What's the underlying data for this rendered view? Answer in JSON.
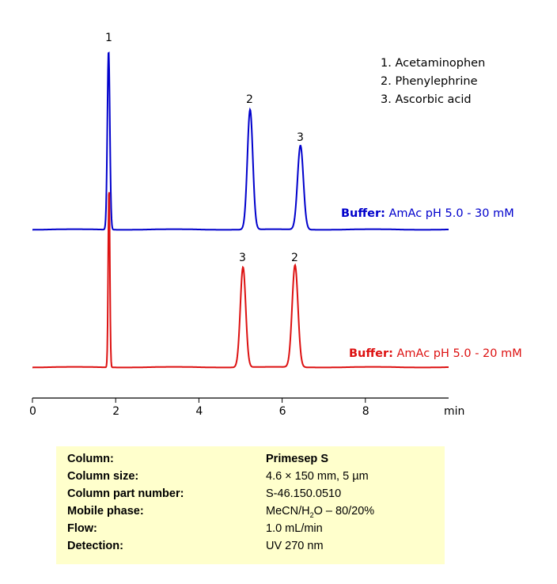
{
  "chart_data": {
    "type": "line",
    "title": "",
    "xlabel": "min",
    "ylabel": "",
    "xlim": [
      0,
      9.9
    ],
    "x_ticks": [
      0,
      2,
      4,
      6,
      8
    ],
    "grid": false,
    "legend_position": "top-right",
    "legend": [
      "1. Acetaminophen",
      "2. Phenylephrine",
      "3. Ascorbic acid"
    ],
    "series": [
      {
        "name": "Buffer: AmAc pH 5.0 - 30 mM",
        "color": "#0000cc",
        "peaks": [
          {
            "label": "1",
            "compound": "Acetaminophen",
            "rt": 1.83,
            "height": 1.0,
            "width": 0.03
          },
          {
            "label": "2",
            "compound": "Phenylephrine",
            "rt": 5.23,
            "height": 0.67,
            "width": 0.065
          },
          {
            "label": "3",
            "compound": "Ascorbic acid",
            "rt": 6.44,
            "height": 0.47,
            "width": 0.07
          }
        ]
      },
      {
        "name": "Buffer: AmAc pH 5.0 - 20 mM",
        "color": "#dd1111",
        "peaks": [
          {
            "label": "1",
            "compound": "Acetaminophen",
            "rt": 1.84,
            "height": 1.0,
            "width": 0.02
          },
          {
            "label": "3",
            "compound": "Ascorbic acid",
            "rt": 5.06,
            "height": 0.56,
            "width": 0.065
          },
          {
            "label": "2",
            "compound": "Phenylephrine",
            "rt": 6.31,
            "height": 0.57,
            "width": 0.07
          }
        ]
      }
    ]
  },
  "legend": {
    "item1": "1. Acetaminophen",
    "item2": "2. Phenylephrine",
    "item3": "3. Ascorbic acid"
  },
  "traces": {
    "top": {
      "buffer_key": "Buffer:",
      "buffer_value": " AmAc pH 5.0 - 30 mM",
      "color": "#0000cc"
    },
    "bottom": {
      "buffer_key": "Buffer:",
      "buffer_value": " AmAc pH 5.0 - 20 mM",
      "color": "#dd1111"
    }
  },
  "axis": {
    "ticks": [
      "0",
      "2",
      "4",
      "6",
      "8"
    ],
    "unit": "min"
  },
  "conditions": {
    "rows": [
      {
        "key": "Column:",
        "value": "Primesep S"
      },
      {
        "key": "Column size:",
        "value": "4.6 × 150 mm, 5 µm"
      },
      {
        "key": "Column part number:",
        "value": "S-46.150.0510"
      },
      {
        "key": "Mobile phase:",
        "value_pre": "MeCN/H",
        "value_sub": "2",
        "value_post": "O – 80/20%"
      },
      {
        "key": "Flow:",
        "value": "1.0 mL/min"
      },
      {
        "key": "Detection:",
        "value": "UV 270 nm"
      }
    ]
  }
}
